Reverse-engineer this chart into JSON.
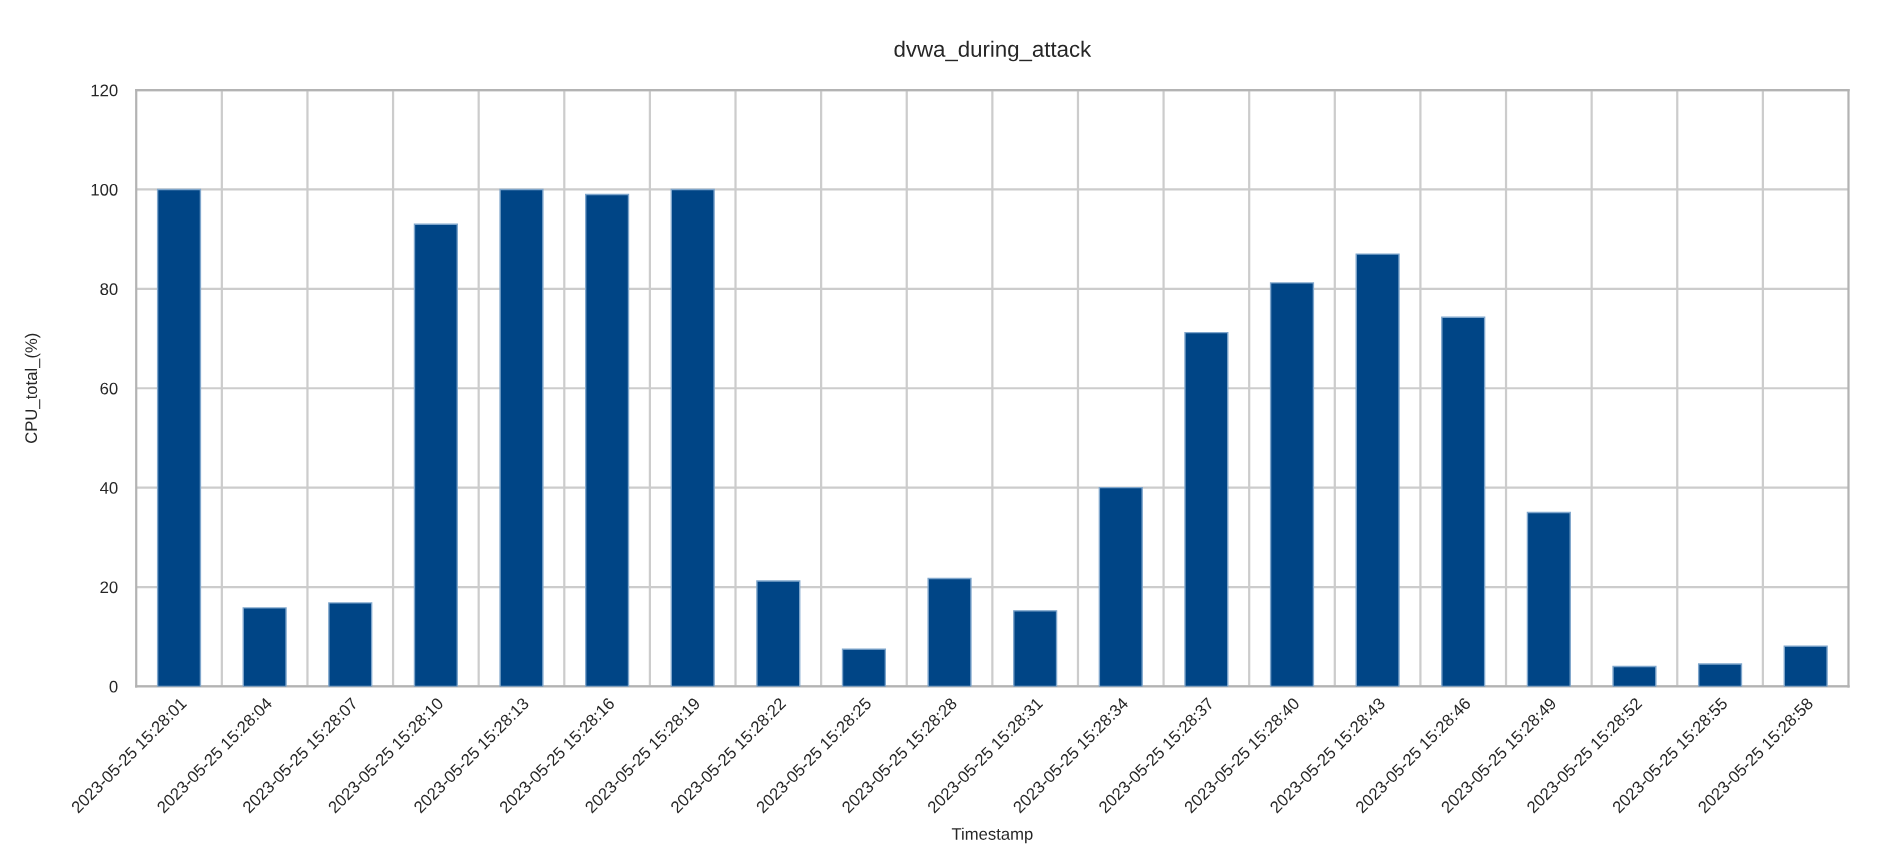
{
  "chart_data": {
    "type": "bar",
    "title": "dvwa_during_attack",
    "xlabel": "Timestamp",
    "ylabel": "CPU_total_(%)",
    "categories": [
      "2023-05-25 15:28:01",
      "2023-05-25 15:28:04",
      "2023-05-25 15:28:07",
      "2023-05-25 15:28:10",
      "2023-05-25 15:28:13",
      "2023-05-25 15:28:16",
      "2023-05-25 15:28:19",
      "2023-05-25 15:28:22",
      "2023-05-25 15:28:25",
      "2023-05-25 15:28:28",
      "2023-05-25 15:28:31",
      "2023-05-25 15:28:34",
      "2023-05-25 15:28:37",
      "2023-05-25 15:28:40",
      "2023-05-25 15:28:43",
      "2023-05-25 15:28:46",
      "2023-05-25 15:28:49",
      "2023-05-25 15:28:52",
      "2023-05-25 15:28:55",
      "2023-05-25 15:28:58"
    ],
    "values": [
      100,
      15.8,
      16.8,
      93,
      100,
      99,
      100,
      21.2,
      7.5,
      21.7,
      15.2,
      40,
      71.2,
      81.2,
      87,
      74.3,
      35,
      4,
      4.5,
      8.1
    ],
    "color": "#004586",
    "ylim": [
      0,
      120
    ],
    "yticks": [
      0,
      20,
      40,
      60,
      80,
      100,
      120
    ],
    "grid": true
  }
}
